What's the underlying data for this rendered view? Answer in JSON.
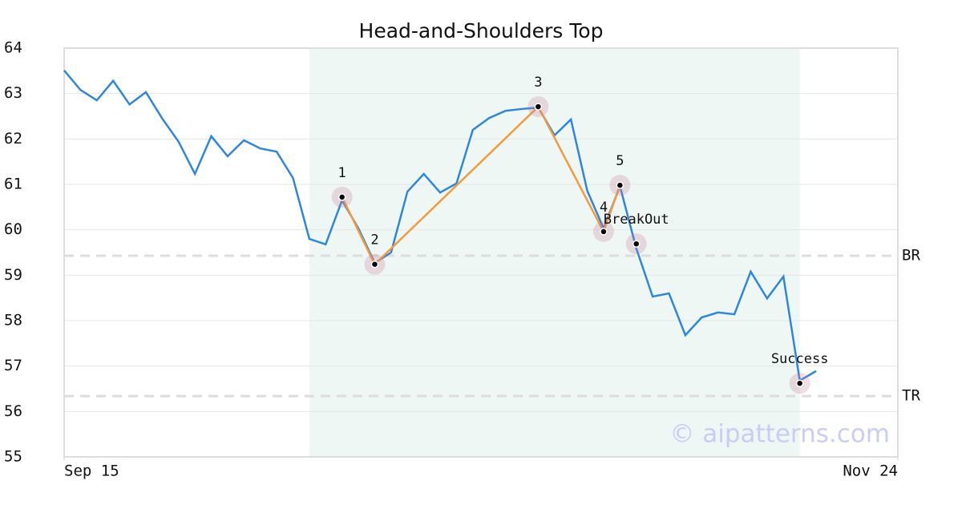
{
  "chart_data": {
    "type": "line",
    "title": "Head-and-Shoulders Top",
    "values": [
      63.51,
      63.08,
      62.85,
      63.28,
      62.76,
      63.03,
      62.45,
      61.94,
      61.23,
      62.06,
      61.62,
      61.97,
      61.79,
      61.72,
      61.14,
      59.8,
      59.68,
      60.65,
      60.03,
      59.27,
      59.5,
      60.84,
      61.23,
      60.82,
      61.02,
      62.2,
      62.46,
      62.62,
      62.66,
      62.69,
      62.08,
      62.43,
      60.86,
      60.03,
      60.96,
      59.59,
      58.53,
      58.6,
      57.68,
      58.07,
      58.18,
      58.14,
      59.08,
      58.49,
      58.97,
      56.68,
      56.89
    ],
    "color": "#2e86de",
    "xlim": [
      0,
      51
    ],
    "xticks": [
      {
        "value": 0,
        "label": "Sep 15"
      },
      {
        "value": 51,
        "label": "Nov 24"
      }
    ],
    "ylim": [
      55,
      64
    ],
    "yticks": [
      55,
      56,
      57,
      58,
      59,
      60,
      61,
      62,
      63,
      64
    ],
    "grid": true,
    "shade": {
      "xlim": [
        15,
        45
      ],
      "color": "#eef7f3"
    },
    "pattern": {
      "color": "#f59a3c",
      "connect": 5,
      "points": [
        {
          "x": 17,
          "value": 60.72,
          "label": "1"
        },
        {
          "x": 19,
          "value": 59.24,
          "label": "2"
        },
        {
          "x": 29,
          "value": 62.71,
          "label": "3"
        },
        {
          "x": 33,
          "value": 59.96,
          "label": "4"
        },
        {
          "x": 34,
          "value": 60.98,
          "label": "5"
        },
        {
          "x": 35,
          "value": 59.69,
          "label": "BreakOut"
        },
        {
          "x": 45,
          "value": 56.62,
          "label": "Success"
        }
      ]
    },
    "levels": [
      {
        "value": 59.43,
        "label": "BR"
      },
      {
        "value": 56.34,
        "label": "TR"
      }
    ],
    "watermark": "© aipatterns.com"
  }
}
